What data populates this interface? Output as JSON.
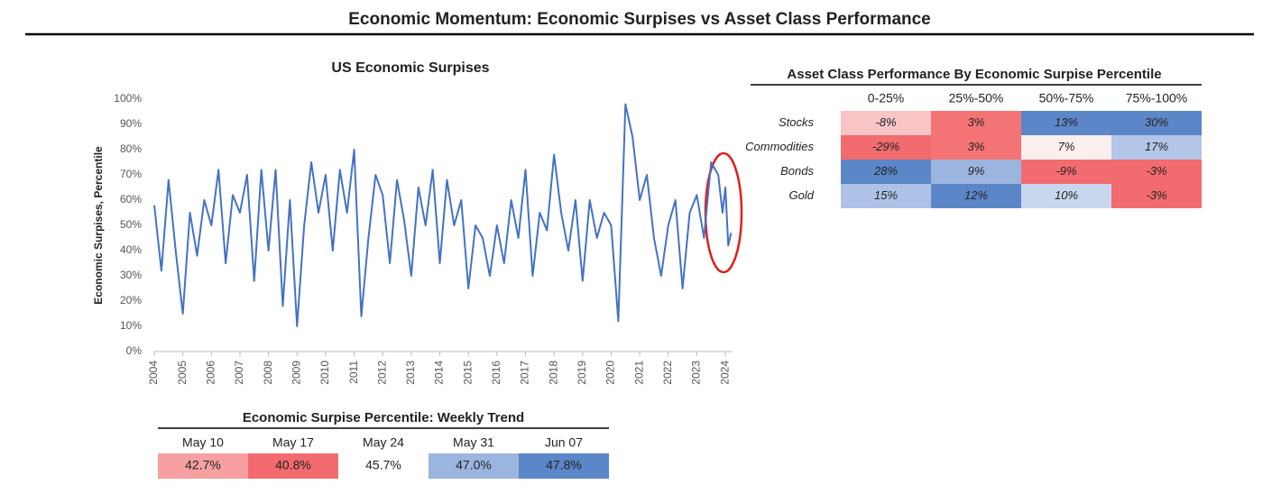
{
  "title": "Economic Momentum: Economic Surpises vs Asset Class Performance",
  "chart_data": {
    "type": "line",
    "title": "US Economic Surpises",
    "y_label": "Economic Surpises, Percentile",
    "x": [
      2004.0,
      2004.25,
      2004.5,
      2004.75,
      2005.0,
      2005.25,
      2005.5,
      2005.75,
      2006.0,
      2006.25,
      2006.5,
      2006.75,
      2007.0,
      2007.25,
      2007.5,
      2007.75,
      2008.0,
      2008.25,
      2008.5,
      2008.75,
      2009.0,
      2009.25,
      2009.5,
      2009.75,
      2010.0,
      2010.25,
      2010.5,
      2010.75,
      2011.0,
      2011.25,
      2011.5,
      2011.75,
      2012.0,
      2012.25,
      2012.5,
      2012.75,
      2013.0,
      2013.25,
      2013.5,
      2013.75,
      2014.0,
      2014.25,
      2014.5,
      2014.75,
      2015.0,
      2015.25,
      2015.5,
      2015.75,
      2016.0,
      2016.25,
      2016.5,
      2016.75,
      2017.0,
      2017.25,
      2017.5,
      2017.75,
      2018.0,
      2018.25,
      2018.5,
      2018.75,
      2019.0,
      2019.25,
      2019.5,
      2019.75,
      2020.0,
      2020.25,
      2020.5,
      2020.75,
      2021.0,
      2021.25,
      2021.5,
      2021.75,
      2022.0,
      2022.25,
      2022.5,
      2022.75,
      2023.0,
      2023.25,
      2023.5,
      2023.75,
      2023.9,
      2024.0,
      2024.1,
      2024.2
    ],
    "series": [
      {
        "name": "US Economic Surpises",
        "color": "#4472c4",
        "values": [
          58,
          32,
          68,
          40,
          15,
          55,
          38,
          60,
          50,
          72,
          35,
          62,
          55,
          70,
          28,
          72,
          40,
          72,
          18,
          60,
          10,
          50,
          75,
          55,
          70,
          40,
          72,
          55,
          80,
          14,
          45,
          70,
          62,
          35,
          68,
          52,
          30,
          65,
          50,
          72,
          35,
          68,
          50,
          60,
          25,
          50,
          45,
          30,
          50,
          35,
          60,
          45,
          72,
          30,
          55,
          48,
          78,
          55,
          40,
          60,
          28,
          60,
          45,
          55,
          50,
          12,
          98,
          85,
          60,
          70,
          45,
          30,
          50,
          60,
          25,
          55,
          62,
          45,
          75,
          70,
          55,
          65,
          42,
          47
        ]
      }
    ],
    "xlim": [
      2004,
      2024.25
    ],
    "xticks": [
      2004,
      2005,
      2006,
      2007,
      2008,
      2009,
      2010,
      2011,
      2012,
      2013,
      2014,
      2015,
      2016,
      2017,
      2018,
      2019,
      2020,
      2021,
      2022,
      2023,
      2024
    ],
    "ylim": [
      0,
      100
    ],
    "yticks": [
      {
        "value": 0,
        "label": "0%"
      },
      {
        "value": 10,
        "label": "10%"
      },
      {
        "value": 20,
        "label": "20%"
      },
      {
        "value": 30,
        "label": "30%"
      },
      {
        "value": 40,
        "label": "40%"
      },
      {
        "value": 50,
        "label": "50%"
      },
      {
        "value": 60,
        "label": "60%"
      },
      {
        "value": 70,
        "label": "70%"
      },
      {
        "value": 80,
        "label": "80%"
      },
      {
        "value": 90,
        "label": "90%"
      },
      {
        "value": 100,
        "label": "100%"
      }
    ],
    "grid": false
  },
  "performance_table": {
    "title": "Asset Class Performance By Economic Surpise Percentile",
    "columns": [
      "0-25%",
      "25%-50%",
      "50%-75%",
      "75%-100%"
    ],
    "rows": [
      {
        "label": "Stocks",
        "cells": [
          "-8%",
          "3%",
          "13%",
          "30%"
        ],
        "colors": [
          "#f8c4c6",
          "#f47476",
          "#5b86c8",
          "#5b86c8"
        ]
      },
      {
        "label": "Commodities",
        "cells": [
          "-29%",
          "3%",
          "7%",
          "17%"
        ],
        "colors": [
          "#f26b6e",
          "#f47476",
          "#fdeeee",
          "#b3c6e7"
        ]
      },
      {
        "label": "Bonds",
        "cells": [
          "28%",
          "9%",
          "-9%",
          "-3%"
        ],
        "colors": [
          "#5b86c8",
          "#9bb5df",
          "#f26b6e",
          "#f26b6e"
        ]
      },
      {
        "label": "Gold",
        "cells": [
          "15%",
          "12%",
          "10%",
          "-3%"
        ],
        "colors": [
          "#adc2e6",
          "#5b86c8",
          "#c9d7ee",
          "#f26b6e"
        ]
      }
    ]
  },
  "weekly_trend": {
    "title": "Economic Surpise Percentile: Weekly Trend",
    "columns": [
      "May 10",
      "May 17",
      "May 24",
      "May 31",
      "Jun 07"
    ],
    "cells": [
      "42.7%",
      "40.8%",
      "45.7%",
      "47.0%",
      "47.8%"
    ],
    "colors": [
      "#f6a0a2",
      "#f26b6e",
      "#ffffff",
      "#9bb5df",
      "#5b86c8"
    ]
  }
}
